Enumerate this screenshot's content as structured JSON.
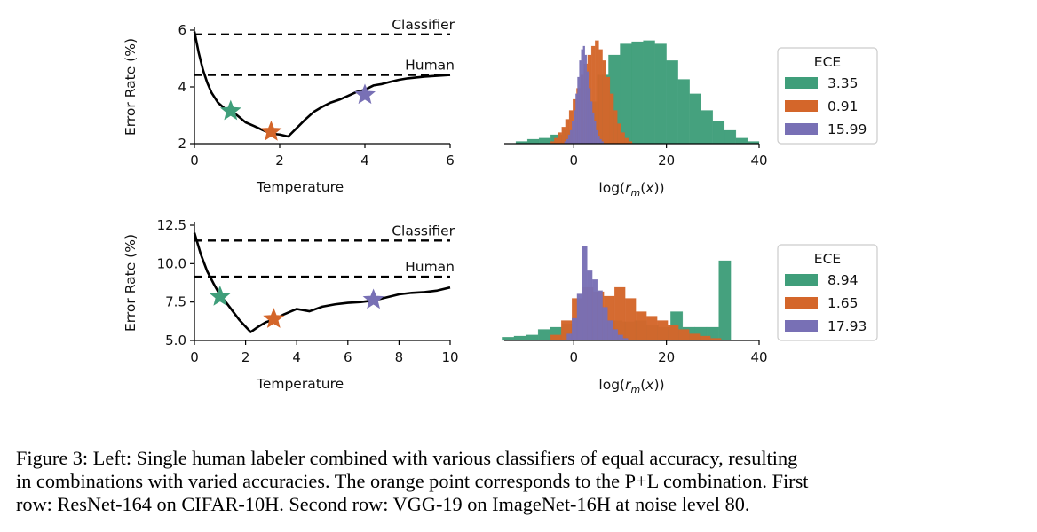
{
  "colors": {
    "green": "#3f9e7a",
    "orange": "#d4662a",
    "purple": "#7870b5"
  },
  "chart_data": [
    {
      "type": "line",
      "panel": "row1-left",
      "xlabel": "Temperature",
      "ylabel": "Error Rate (%)",
      "xlim": [
        0,
        6
      ],
      "ylim": [
        2,
        6
      ],
      "xticks": [
        0,
        2,
        4,
        6
      ],
      "yticks": [
        2,
        4,
        6
      ],
      "reference_lines": [
        {
          "label": "Classifier",
          "y": 5.85
        },
        {
          "label": "Human",
          "y": 4.42
        }
      ],
      "series": [
        {
          "x": [
            0,
            0.1,
            0.2,
            0.3,
            0.4,
            0.55,
            0.7,
            0.85,
            1.0,
            1.2,
            1.4,
            1.6,
            1.8,
            2.0,
            2.2,
            2.4,
            2.6,
            2.8,
            3.0,
            3.2,
            3.4,
            3.6,
            3.8,
            4.0,
            4.2,
            4.4,
            4.6,
            4.8,
            5.0,
            5.2,
            5.4,
            5.6,
            5.8,
            6.0
          ],
          "values": [
            5.95,
            5.2,
            4.6,
            4.15,
            3.8,
            3.45,
            3.25,
            3.15,
            3.0,
            2.75,
            2.62,
            2.48,
            2.35,
            2.32,
            2.25,
            2.55,
            2.85,
            3.12,
            3.3,
            3.45,
            3.55,
            3.68,
            3.82,
            3.9,
            4.05,
            4.1,
            4.18,
            4.25,
            4.3,
            4.33,
            4.36,
            4.38,
            4.4,
            4.42
          ]
        }
      ],
      "markers": [
        {
          "x": 0.85,
          "y": 3.15,
          "color": "green"
        },
        {
          "x": 1.8,
          "y": 2.42,
          "color": "orange"
        },
        {
          "x": 4.0,
          "y": 3.72,
          "color": "purple"
        }
      ]
    },
    {
      "type": "histogram",
      "panel": "row1-right",
      "xlabel": "log(r_m(x))",
      "xlim": [
        -15,
        40
      ],
      "xticks": [
        0,
        20,
        40
      ],
      "bin_width": 2.5,
      "legend": {
        "title": "ECE",
        "entries": [
          {
            "label": "3.35",
            "color": "green"
          },
          {
            "label": "0.91",
            "color": "orange"
          },
          {
            "label": "15.99",
            "color": "purple"
          }
        ]
      },
      "series": [
        {
          "color": "green",
          "start": -12.5,
          "bin_width": 2.5,
          "values": [
            0.02,
            0.04,
            0.05,
            0.08,
            0.12,
            0.2,
            0.38,
            0.62,
            0.8,
            0.9,
            0.92,
            0.93,
            0.9,
            0.75,
            0.58,
            0.45,
            0.3,
            0.2,
            0.12,
            0.05,
            0.02
          ]
        },
        {
          "color": "orange",
          "start": -5.0,
          "bin_width": 0.8,
          "values": [
            0.02,
            0.05,
            0.1,
            0.15,
            0.22,
            0.3,
            0.4,
            0.5,
            0.62,
            0.72,
            0.8,
            0.88,
            0.93,
            0.85,
            0.75,
            0.6,
            0.45,
            0.3,
            0.18,
            0.1,
            0.05,
            0.02
          ]
        },
        {
          "color": "purple",
          "start": -2.0,
          "bin_width": 0.4,
          "values": [
            0.02,
            0.04,
            0.08,
            0.12,
            0.2,
            0.3,
            0.45,
            0.6,
            0.75,
            0.85,
            0.88,
            0.8,
            0.65,
            0.5,
            0.38,
            0.28,
            0.2,
            0.12,
            0.07,
            0.04,
            0.02
          ]
        }
      ]
    },
    {
      "type": "line",
      "panel": "row2-left",
      "xlabel": "Temperature",
      "ylabel": "Error Rate (%)",
      "xlim": [
        0,
        10
      ],
      "ylim": [
        5,
        12.5
      ],
      "xticks": [
        0,
        2,
        4,
        6,
        8,
        10
      ],
      "yticks": [
        5.0,
        7.5,
        10.0,
        12.5
      ],
      "reference_lines": [
        {
          "label": "Classifier",
          "y": 11.5
        },
        {
          "label": "Human",
          "y": 9.15
        }
      ],
      "series": [
        {
          "x": [
            0,
            0.25,
            0.5,
            0.75,
            1.0,
            1.25,
            1.5,
            1.75,
            2.0,
            2.2,
            2.5,
            2.8,
            3.1,
            3.5,
            4.0,
            4.5,
            5.0,
            5.5,
            6.0,
            6.5,
            7.0,
            7.5,
            8.0,
            8.5,
            9.0,
            9.5,
            10.0
          ],
          "values": [
            12.0,
            10.6,
            9.5,
            8.7,
            7.95,
            7.45,
            6.9,
            6.35,
            5.9,
            5.55,
            5.9,
            6.2,
            6.35,
            6.7,
            7.05,
            6.9,
            7.2,
            7.35,
            7.45,
            7.5,
            7.6,
            7.8,
            8.0,
            8.1,
            8.15,
            8.25,
            8.45
          ]
        }
      ],
      "markers": [
        {
          "x": 1.0,
          "y": 7.85,
          "color": "green"
        },
        {
          "x": 3.1,
          "y": 6.4,
          "color": "orange"
        },
        {
          "x": 7.0,
          "y": 7.65,
          "color": "purple"
        }
      ]
    },
    {
      "type": "histogram",
      "panel": "row2-right",
      "xlabel": "log(r_m(x))",
      "xlim": [
        -15,
        40
      ],
      "xticks": [
        0,
        20,
        40
      ],
      "legend": {
        "title": "ECE",
        "entries": [
          {
            "label": "8.94",
            "color": "green"
          },
          {
            "label": "1.65",
            "color": "orange"
          },
          {
            "label": "17.93",
            "color": "purple"
          }
        ]
      },
      "series": [
        {
          "color": "green",
          "start": -15.5,
          "bin_width": 2.6,
          "values": [
            0.03,
            0.04,
            0.05,
            0.1,
            0.12,
            0.15,
            0.16,
            0.13,
            0.17,
            0.18,
            0.17,
            0.18,
            0.14,
            0.12,
            0.26,
            0.12,
            0.12,
            0.12,
            0.72
          ]
        },
        {
          "color": "orange",
          "start": -5.0,
          "bin_width": 2.3,
          "values": [
            0.05,
            0.18,
            0.38,
            0.48,
            0.44,
            0.4,
            0.48,
            0.38,
            0.26,
            0.22,
            0.18,
            0.14,
            0.1,
            0.06,
            0.04,
            0.02
          ]
        },
        {
          "color": "purple",
          "start": -1.5,
          "bin_width": 1.1,
          "values": [
            0.06,
            0.2,
            0.42,
            0.85,
            0.63,
            0.55,
            0.45,
            0.3,
            0.18,
            0.1,
            0.05,
            0.02
          ]
        }
      ]
    }
  ],
  "caption": {
    "lines": [
      "Figure 3:  Left: Single human labeler combined with various classifiers of equal accuracy, resulting",
      "in combinations with varied accuracies. The orange point corresponds to the P+L combination. First",
      "row: ResNet-164 on CIFAR-10H. Second row: VGG-19 on ImageNet-16H at noise level 80."
    ]
  }
}
